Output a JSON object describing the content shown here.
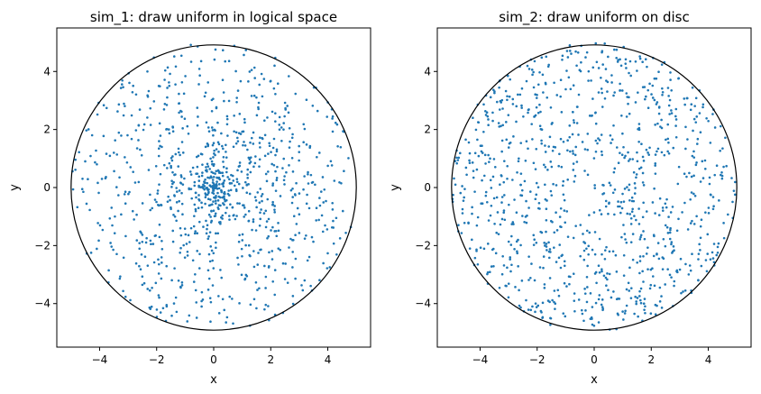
{
  "chart_data": [
    {
      "type": "scatter",
      "title": "sim_1: draw uniform in logical space",
      "xlabel": "x",
      "ylabel": "y",
      "xlim": [
        -5.5,
        5.5
      ],
      "ylim": [
        -5.5,
        5.5
      ],
      "xticks": [
        -4,
        -2,
        0,
        2,
        4
      ],
      "yticks": [
        -4,
        -2,
        0,
        2,
        4
      ],
      "xtick_labels": [
        "−4",
        "−2",
        "0",
        "2",
        "4"
      ],
      "ytick_labels": [
        "−4",
        "−2",
        "0",
        "2",
        "4"
      ],
      "grid": false,
      "boundary_circle": {
        "center": [
          0,
          0
        ],
        "radius": 5,
        "color": "#000000"
      },
      "marker_color": "#1f77b4",
      "n_points": 1000,
      "sampling": "radius uniform in [0, 5], angle uniform in [0, 2π] (points dense near center)",
      "points": []
    },
    {
      "type": "scatter",
      "title": "sim_2: draw uniform on disc",
      "xlabel": "x",
      "ylabel": "y",
      "xlim": [
        -5.5,
        5.5
      ],
      "ylim": [
        -5.5,
        5.5
      ],
      "xticks": [
        -4,
        -2,
        0,
        2,
        4
      ],
      "yticks": [
        -4,
        -2,
        0,
        2,
        4
      ],
      "xtick_labels": [
        "−4",
        "−2",
        "0",
        "2",
        "4"
      ],
      "ytick_labels": [
        "−4",
        "−2",
        "0",
        "2",
        "4"
      ],
      "grid": false,
      "boundary_circle": {
        "center": [
          0,
          0
        ],
        "radius": 5,
        "color": "#000000"
      },
      "marker_color": "#1f77b4",
      "n_points": 1000,
      "sampling": "uniform over disc area of radius 5",
      "points": []
    }
  ]
}
